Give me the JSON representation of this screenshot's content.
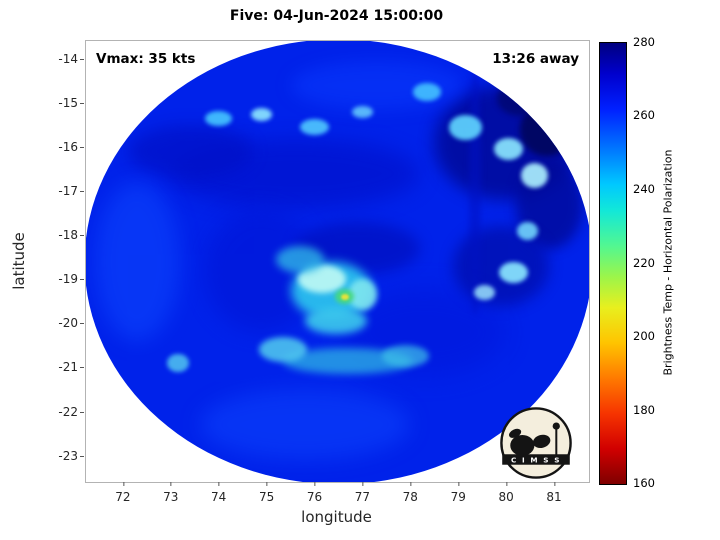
{
  "title": "Five: 04-Jun-2024 15:00:00",
  "annotations": {
    "vmax": "Vmax: 35 kts",
    "away": "13:26 away"
  },
  "axes": {
    "xlabel": "longitude",
    "ylabel": "latitude"
  },
  "colorbar_label": "Brightness Temp - Horizontal Polarization",
  "logo_text": "C I M S S",
  "chart_data": {
    "type": "heatmap",
    "title": "Five: 04-Jun-2024 15:00:00",
    "xlabel": "longitude",
    "ylabel": "latitude",
    "x_ticks": [
      72,
      73,
      74,
      75,
      76,
      77,
      78,
      79,
      80,
      81
    ],
    "y_ticks": [
      -14,
      -15,
      -16,
      -17,
      -18,
      -19,
      -20,
      -21,
      -22,
      -23
    ],
    "axes_range": {
      "x": [
        71.23,
        81.73
      ],
      "y": [
        -23.6,
        -13.59
      ]
    },
    "grid": false,
    "colorbar": {
      "label": "Brightness Temp - Horizontal Polarization",
      "min": 160,
      "max": 280,
      "tick_values": [
        280,
        260,
        240,
        220,
        200,
        180,
        160
      ],
      "gradient": [
        "#000080 0%",
        "#0000cd 7%",
        "#0020ff 15%",
        "#0080ff 25%",
        "#00c8ff 32%",
        "#12e8d8 38%",
        "#52f791 46%",
        "#9cf54a 53%",
        "#e8ef1e 60%",
        "#ffc400 68%",
        "#ff7a00 76%",
        "#f63400 84%",
        "#d10000 92%",
        "#7f0000 100%"
      ]
    },
    "swath": {
      "center_lon": 76.5,
      "center_lat": -18.6,
      "radius_lon_deg": 5.3,
      "radius_lat_deg": 5.05,
      "base_color": "#0022ea",
      "base_temp_K": 258
    },
    "features": [
      {
        "lon": 80.0,
        "lat": -15.9,
        "rx": 1.5,
        "ry": 1.3,
        "color": "#000a99",
        "blur": 8,
        "opacity": 0.85,
        "temp_K": 270
      },
      {
        "lon": 80.9,
        "lat": -17.3,
        "rx": 0.7,
        "ry": 1.0,
        "color": "#000a99",
        "blur": 6,
        "opacity": 0.8,
        "temp_K": 270
      },
      {
        "lon": 80.85,
        "lat": -15.6,
        "rx": 0.55,
        "ry": 0.6,
        "color": "#00065e",
        "blur": 3,
        "opacity": 0.9,
        "temp_K": 276
      },
      {
        "lon": 80.3,
        "lat": -14.9,
        "rx": 0.5,
        "ry": 0.4,
        "color": "#000873",
        "blur": 3,
        "opacity": 0.85,
        "temp_K": 274
      },
      {
        "lon": 75.6,
        "lat": -16.6,
        "rx": 2.6,
        "ry": 0.8,
        "color": "#0013cf",
        "blur": 10,
        "opacity": 0.75,
        "temp_K": 264
      },
      {
        "lon": 73.4,
        "lat": -16.1,
        "rx": 1.3,
        "ry": 0.6,
        "color": "#0011c6",
        "blur": 8,
        "opacity": 0.7,
        "temp_K": 266
      },
      {
        "lon": 74.9,
        "lat": -18.8,
        "rx": 1.2,
        "ry": 1.4,
        "color": "#0016d8",
        "blur": 10,
        "opacity": 0.65,
        "temp_K": 263
      },
      {
        "lon": 76.9,
        "lat": -18.3,
        "rx": 1.3,
        "ry": 0.6,
        "color": "#000fbe",
        "blur": 7,
        "opacity": 0.7,
        "temp_K": 267
      },
      {
        "lon": 78.3,
        "lat": -20.2,
        "rx": 1.7,
        "ry": 1.0,
        "color": "#0018dd",
        "blur": 12,
        "opacity": 0.65,
        "temp_K": 262
      },
      {
        "lon": 79.9,
        "lat": -18.7,
        "rx": 1.0,
        "ry": 0.9,
        "color": "#000da8",
        "blur": 7,
        "opacity": 0.7,
        "temp_K": 269
      },
      {
        "lon": 79.35,
        "lat": -17.0,
        "rx": 0.12,
        "ry": 2.8,
        "color": "#0011c4",
        "blur": 3,
        "opacity": 0.55,
        "temp_K": 266
      },
      {
        "lon": 72.3,
        "lat": -18.6,
        "rx": 0.9,
        "ry": 1.8,
        "color": "#0d47ff",
        "blur": 10,
        "opacity": 0.55,
        "temp_K": 252
      },
      {
        "lon": 75.8,
        "lat": -22.3,
        "rx": 2.2,
        "ry": 0.8,
        "color": "#0d47ff",
        "blur": 10,
        "opacity": 0.5,
        "temp_K": 252
      },
      {
        "lon": 77.3,
        "lat": -14.6,
        "rx": 1.8,
        "ry": 0.55,
        "color": "#0a3cff",
        "blur": 8,
        "opacity": 0.5,
        "temp_K": 253
      },
      {
        "lon": 74.0,
        "lat": -15.35,
        "rx": 0.28,
        "ry": 0.18,
        "color": "#46c8ff",
        "blur": 2,
        "opacity": 0.9,
        "temp_K": 243
      },
      {
        "lon": 74.9,
        "lat": -15.25,
        "rx": 0.22,
        "ry": 0.15,
        "color": "#8ee9ff",
        "blur": 2,
        "opacity": 0.9,
        "temp_K": 240
      },
      {
        "lon": 76.0,
        "lat": -15.55,
        "rx": 0.3,
        "ry": 0.18,
        "color": "#55d4ff",
        "blur": 2,
        "opacity": 0.85,
        "temp_K": 242
      },
      {
        "lon": 77.0,
        "lat": -15.2,
        "rx": 0.22,
        "ry": 0.14,
        "color": "#6fdcff",
        "blur": 2,
        "opacity": 0.8,
        "temp_K": 241
      },
      {
        "lon": 78.35,
        "lat": -14.75,
        "rx": 0.3,
        "ry": 0.2,
        "color": "#49ccff",
        "blur": 2,
        "opacity": 0.85,
        "temp_K": 243
      },
      {
        "lon": 79.15,
        "lat": -15.55,
        "rx": 0.35,
        "ry": 0.28,
        "color": "#62d9ff",
        "blur": 2,
        "opacity": 0.9,
        "temp_K": 241
      },
      {
        "lon": 80.05,
        "lat": -16.05,
        "rx": 0.3,
        "ry": 0.25,
        "color": "#8deaff",
        "blur": 2,
        "opacity": 0.9,
        "temp_K": 239
      },
      {
        "lon": 80.6,
        "lat": -16.65,
        "rx": 0.28,
        "ry": 0.28,
        "color": "#aef3ff",
        "blur": 2,
        "opacity": 0.9,
        "temp_K": 237
      },
      {
        "lon": 80.45,
        "lat": -17.9,
        "rx": 0.22,
        "ry": 0.2,
        "color": "#79e1ff",
        "blur": 2,
        "opacity": 0.85,
        "temp_K": 240
      },
      {
        "lon": 80.15,
        "lat": -18.85,
        "rx": 0.3,
        "ry": 0.24,
        "color": "#8deaff",
        "blur": 2,
        "opacity": 0.9,
        "temp_K": 239
      },
      {
        "lon": 79.55,
        "lat": -19.3,
        "rx": 0.22,
        "ry": 0.18,
        "color": "#a5f0ff",
        "blur": 2,
        "opacity": 0.8,
        "temp_K": 238
      },
      {
        "lon": 76.35,
        "lat": -19.25,
        "rx": 0.85,
        "ry": 0.65,
        "color": "#2bc0ee",
        "blur": 5,
        "opacity": 0.95,
        "temp_K": 236
      },
      {
        "lon": 76.15,
        "lat": -19.0,
        "rx": 0.5,
        "ry": 0.32,
        "color": "#b9f7f4",
        "blur": 3,
        "opacity": 0.95,
        "temp_K": 228
      },
      {
        "lon": 77.0,
        "lat": -19.35,
        "rx": 0.3,
        "ry": 0.35,
        "color": "#7fe6ef",
        "blur": 3,
        "opacity": 0.9,
        "temp_K": 233
      },
      {
        "lon": 76.45,
        "lat": -19.95,
        "rx": 0.65,
        "ry": 0.3,
        "color": "#3cc9ec",
        "blur": 4,
        "opacity": 0.9,
        "temp_K": 237
      },
      {
        "lon": 75.7,
        "lat": -18.55,
        "rx": 0.5,
        "ry": 0.3,
        "color": "#2fb4e6",
        "blur": 4,
        "opacity": 0.8,
        "temp_K": 240
      },
      {
        "lon": 76.62,
        "lat": -19.4,
        "rx": 0.2,
        "ry": 0.17,
        "color": "#49d97e",
        "blur": 2,
        "opacity": 0.95,
        "temp_K": 216
      },
      {
        "lon": 76.63,
        "lat": -19.4,
        "rx": 0.08,
        "ry": 0.07,
        "color": "#e3e23c",
        "blur": 1,
        "opacity": 1,
        "temp_K": 204
      },
      {
        "lon": 76.7,
        "lat": -20.85,
        "rx": 1.35,
        "ry": 0.3,
        "color": "#2eb4e4",
        "blur": 4,
        "opacity": 0.75,
        "temp_K": 240
      },
      {
        "lon": 75.35,
        "lat": -20.6,
        "rx": 0.5,
        "ry": 0.28,
        "color": "#52cdee",
        "blur": 3,
        "opacity": 0.85,
        "temp_K": 238
      },
      {
        "lon": 77.9,
        "lat": -20.75,
        "rx": 0.5,
        "ry": 0.25,
        "color": "#3fc2e8",
        "blur": 3,
        "opacity": 0.7,
        "temp_K": 239
      },
      {
        "lon": 73.15,
        "lat": -20.9,
        "rx": 0.22,
        "ry": 0.2,
        "color": "#57d0f0",
        "blur": 2,
        "opacity": 0.8,
        "temp_K": 241
      }
    ]
  }
}
